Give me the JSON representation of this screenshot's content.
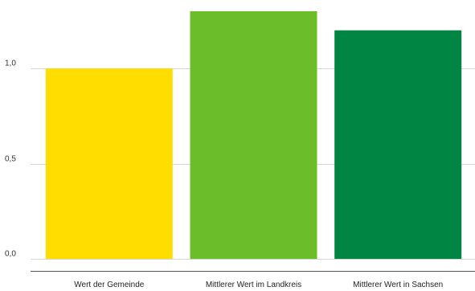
{
  "chart_data": {
    "type": "bar",
    "title": "",
    "xlabel": "",
    "ylabel": "",
    "categories": [
      "Wert der Gemeinde",
      "Mittlerer Wert im Landkreis",
      "Mittlerer Wert in Sachsen"
    ],
    "values": [
      1.0,
      1.3,
      1.2
    ],
    "colors": [
      "#ffdd00",
      "#6cbd2a",
      "#008542"
    ],
    "ylim": [
      0,
      1.3
    ],
    "yticks": [
      0,
      0.5,
      1.0
    ],
    "ytick_labels": [
      "0,0",
      "0,5",
      "1,0"
    ],
    "grid": true,
    "legend": "none"
  }
}
